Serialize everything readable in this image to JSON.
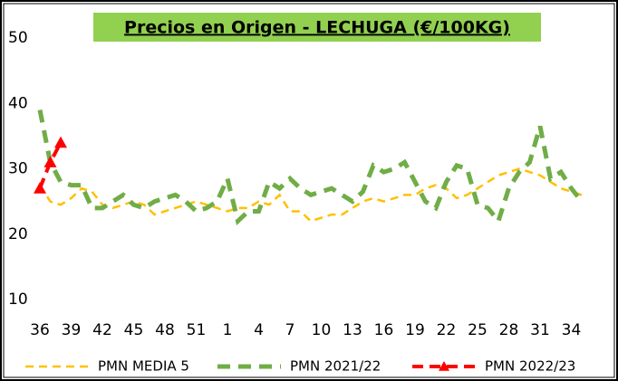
{
  "chart_data": {
    "type": "line",
    "title": "Precios en Origen - LECHUGA (€/100KG)",
    "categories": [
      "36",
      null,
      null,
      "39",
      null,
      null,
      "42",
      null,
      null,
      "45",
      null,
      null,
      "48",
      null,
      null,
      "51",
      null,
      null,
      "1",
      null,
      null,
      "4",
      null,
      null,
      "7",
      null,
      null,
      "10",
      null,
      null,
      "13",
      null,
      null,
      "16",
      null,
      null,
      "19",
      null,
      null,
      "22",
      null,
      null,
      "25",
      null,
      null,
      "28",
      null,
      null,
      "31",
      null,
      null,
      "34",
      null
    ],
    "series": [
      {
        "name": "PMN MEDIA 5",
        "color": "#FFC000",
        "values": [
          27.5,
          25,
          24.5,
          25.5,
          27,
          26.5,
          24.5,
          24,
          24.5,
          25,
          24.5,
          23,
          23.5,
          24,
          24.5,
          25,
          24.5,
          24,
          23.5,
          24,
          24,
          25,
          24.5,
          26,
          23.5,
          23.5,
          22,
          22.5,
          23,
          23,
          24,
          25,
          25.5,
          25,
          25.5,
          26,
          26,
          27,
          27.5,
          27,
          25.5,
          26,
          27,
          28,
          29,
          29.5,
          30,
          29.5,
          29,
          28,
          27,
          26.5,
          26
        ]
      },
      {
        "name": "PMN 2021/22",
        "color": "#70AD47",
        "values": [
          39,
          31,
          28,
          27.5,
          27.5,
          24,
          24,
          25,
          26,
          24.5,
          24,
          25,
          25.5,
          26,
          25,
          23.5,
          24,
          25,
          28.5,
          22,
          23.5,
          23.5,
          28,
          27,
          28.5,
          27,
          26,
          26.5,
          27,
          26,
          25,
          26.5,
          30.5,
          29.5,
          30,
          31,
          28,
          25,
          24,
          28,
          30.5,
          30,
          24.5,
          24,
          22,
          27,
          29.5,
          31,
          36.5,
          28.5,
          29.5,
          27,
          25
        ]
      },
      {
        "name": "PMN 2022/23",
        "color": "#FF0000",
        "marker": "triangle",
        "values": [
          27,
          31,
          34,
          null,
          null,
          null,
          null,
          null,
          null,
          null,
          null,
          null,
          null,
          null,
          null,
          null,
          null,
          null,
          null,
          null,
          null,
          null,
          null,
          null,
          null,
          null,
          null,
          null,
          null,
          null,
          null,
          null,
          null,
          null,
          null,
          null,
          null,
          null,
          null,
          null,
          null,
          null,
          null,
          null,
          null,
          null,
          null,
          null,
          null,
          null,
          null,
          null,
          null
        ]
      }
    ],
    "ylim": [
      10,
      50
    ],
    "yticks": [
      10,
      20,
      30,
      40,
      50
    ],
    "grid": false,
    "legend": "bottom"
  }
}
